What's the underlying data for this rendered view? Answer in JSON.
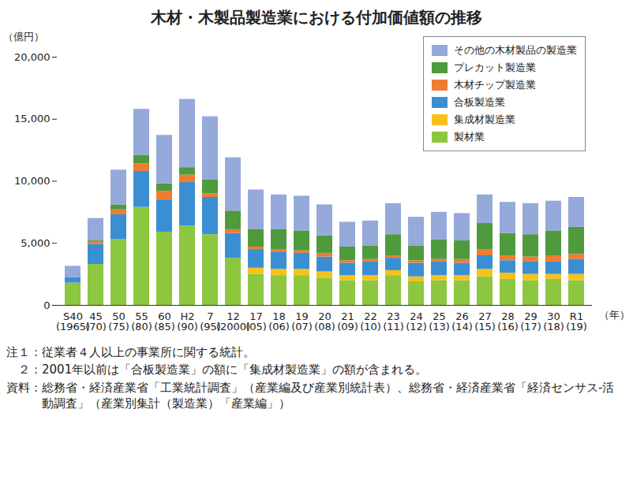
{
  "chart_data": {
    "type": "bar",
    "title": "木材・木製品製造業における付加価値額の推移",
    "y_label": "（億円）",
    "x_label": "（年）",
    "stacked": true,
    "grid": false,
    "legend": "top-right",
    "categories": [
      "S40\n(1965)",
      "45\n(70)",
      "50\n(75)",
      "55\n(80)",
      "60\n(85)",
      "H2\n(90)",
      "7\n(95)",
      "12\n(2000)",
      "17\n(05)",
      "18\n(06)",
      "19\n(07)",
      "20\n(08)",
      "21\n(09)",
      "22\n(10)",
      "23\n(11)",
      "24\n(12)",
      "25\n(13)",
      "26\n(14)",
      "27\n(15)",
      "28\n(16)",
      "29\n(17)",
      "30\n(18)",
      "R1\n(19)"
    ],
    "series": [
      {
        "name": "製材業",
        "color": "#8dc63f",
        "values": [
          1800,
          3300,
          5300,
          7900,
          5900,
          6400,
          5700,
          3800,
          2500,
          2400,
          2400,
          2200,
          2000,
          2000,
          2400,
          1900,
          2000,
          2000,
          2300,
          2100,
          2000,
          2100,
          2000
        ]
      },
      {
        "name": "集成材製造業",
        "color": "#f5c21b",
        "values": [
          null,
          null,
          null,
          null,
          null,
          null,
          null,
          null,
          500,
          500,
          500,
          500,
          400,
          400,
          400,
          400,
          400,
          400,
          600,
          500,
          500,
          400,
          500
        ]
      },
      {
        "name": "合板製造業",
        "color": "#3a8fd3",
        "values": [
          450,
          1600,
          2000,
          2900,
          2600,
          3500,
          3000,
          2000,
          1500,
          1400,
          1300,
          1200,
          1000,
          1100,
          1000,
          1100,
          1100,
          1000,
          1100,
          1000,
          1000,
          1000,
          1200
        ]
      },
      {
        "name": "木材チップ製造業",
        "color": "#ee7d31",
        "values": [
          null,
          200,
          400,
          600,
          700,
          600,
          300,
          300,
          200,
          200,
          200,
          300,
          200,
          200,
          200,
          200,
          200,
          300,
          500,
          400,
          400,
          500,
          400
        ]
      },
      {
        "name": "プレカット製造業",
        "color": "#4f9a3c",
        "values": [
          null,
          100,
          400,
          700,
          600,
          600,
          1100,
          1500,
          1400,
          1600,
          1600,
          1400,
          1100,
          1100,
          1700,
          1200,
          1600,
          1500,
          2100,
          1800,
          1800,
          2000,
          2200
        ]
      },
      {
        "name": "その他の木材製品の製造業",
        "color": "#95a9da",
        "values": [
          900,
          1800,
          2800,
          3700,
          3900,
          5500,
          5100,
          4300,
          3200,
          2800,
          2800,
          2500,
          2000,
          2000,
          2500,
          2300,
          2200,
          2200,
          2300,
          2500,
          2500,
          2400,
          2400
        ]
      }
    ],
    "ylim": [
      0,
      20000
    ],
    "yticks": [
      0,
      {
        "value": 5000,
        "label": "5,000"
      },
      {
        "value": 10000,
        "label": "10,000"
      },
      {
        "value": 15000,
        "label": "15,000"
      },
      {
        "value": 20000,
        "label": "20,000"
      }
    ],
    "notes": [
      {
        "label": "注１：",
        "text": "従業者４人以上の事業所に関する統計。"
      },
      {
        "label": "２：",
        "text": "2001年以前は「合板製造業」の額に「集成材製造業」の額が含まれる。"
      },
      {
        "label": "資料：",
        "text": "総務省・経済産業省「工業統計調査」（産業編及び産業別統計表）、総務省・経済産業省「経済センサス-活動調査」（産業別集計（製造業）「産業編」）"
      }
    ]
  }
}
